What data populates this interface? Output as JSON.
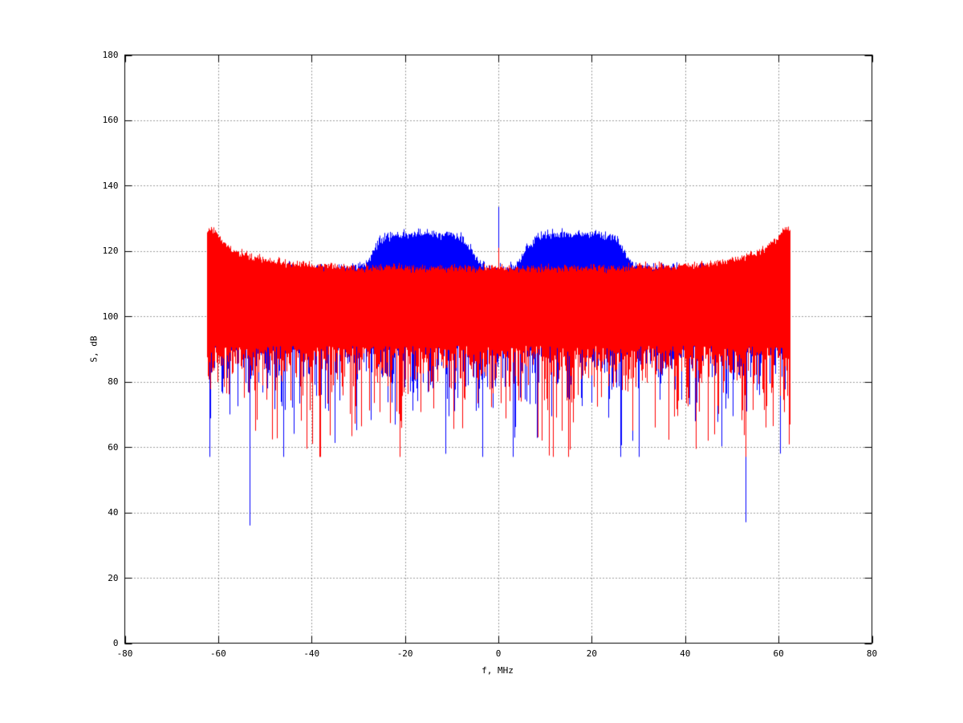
{
  "figure": {
    "background_color": "#ffffff",
    "axes_color": "#000000",
    "grid_color": "#3c3c3c",
    "grid_style": "dotted"
  },
  "chart_data": {
    "type": "line",
    "title": "",
    "xlabel": "f, MHz",
    "ylabel": "S, dB",
    "xlim": [
      -80,
      80
    ],
    "ylim": [
      0,
      180
    ],
    "xticks": [
      -80,
      -60,
      -40,
      -20,
      0,
      20,
      40,
      60,
      80
    ],
    "yticks": [
      0,
      20,
      40,
      60,
      80,
      100,
      120,
      140,
      160,
      180
    ],
    "grid": "on",
    "legend": "none",
    "band_mhz": [
      -62.4,
      62.4
    ],
    "series": [
      {
        "name": "blue-trace",
        "color": "#0000ff",
        "draw_order": 1,
        "top_sigma_db": 1.5,
        "bottom_base_db": 93,
        "bottom_dip_mean_db": 7,
        "deep_dip_prob": 0.04,
        "center_spike": {
          "f": 0,
          "peak_db": 133.5
        },
        "top_envelope": [
          [
            -62.4,
            119.0
          ],
          [
            -61.5,
            117.0
          ],
          [
            -60,
            116.0
          ],
          [
            -57,
            115.3
          ],
          [
            -50,
            114.8
          ],
          [
            -40,
            114.8
          ],
          [
            -31,
            114.9
          ],
          [
            -29,
            115.6
          ],
          [
            -28,
            117.0
          ],
          [
            -27,
            119.5
          ],
          [
            -26,
            122.0
          ],
          [
            -25,
            123.8
          ],
          [
            -24,
            124.6
          ],
          [
            -22,
            125.0
          ],
          [
            -18,
            125.3
          ],
          [
            -14,
            125.4
          ],
          [
            -11,
            125.2
          ],
          [
            -9,
            124.6
          ],
          [
            -8,
            124.0
          ],
          [
            -7,
            122.8
          ],
          [
            -6,
            120.8
          ],
          [
            -5,
            118.2
          ],
          [
            -4.2,
            116.4
          ],
          [
            -3.5,
            115.4
          ],
          [
            -2.5,
            114.9
          ],
          [
            -1,
            114.7
          ],
          [
            1,
            114.7
          ],
          [
            2.5,
            114.9
          ],
          [
            3.5,
            115.4
          ],
          [
            4.2,
            116.4
          ],
          [
            5,
            118.2
          ],
          [
            6,
            120.8
          ],
          [
            7,
            122.8
          ],
          [
            8,
            124.0
          ],
          [
            9,
            124.6
          ],
          [
            11,
            125.2
          ],
          [
            14,
            125.4
          ],
          [
            18,
            125.3
          ],
          [
            22,
            125.0
          ],
          [
            24,
            124.6
          ],
          [
            25,
            123.8
          ],
          [
            26,
            122.0
          ],
          [
            27,
            119.5
          ],
          [
            28,
            117.0
          ],
          [
            29,
            115.6
          ],
          [
            31,
            114.9
          ],
          [
            40,
            114.8
          ],
          [
            50,
            114.8
          ],
          [
            57,
            115.3
          ],
          [
            60,
            116.0
          ],
          [
            61.5,
            117.0
          ],
          [
            62.4,
            119.0
          ]
        ],
        "notable_dips": [
          [
            -53.2,
            36
          ],
          [
            52.9,
            37
          ],
          [
            60.4,
            58
          ],
          [
            -57.5,
            70
          ],
          [
            23.5,
            69
          ],
          [
            -9.5,
            71
          ],
          [
            -61.8,
            75
          ]
        ]
      },
      {
        "name": "red-trace",
        "color": "#ff0000",
        "draw_order": 2,
        "top_sigma_db": 1.2,
        "bottom_base_db": 91,
        "bottom_dip_mean_db": 6.5,
        "deep_dip_prob": 0.03,
        "center_spike": {
          "f": 0,
          "peak_db": 121
        },
        "top_envelope": [
          [
            -62.4,
            126.0
          ],
          [
            -62,
            126.8
          ],
          [
            -61,
            126.5
          ],
          [
            -60,
            124.5
          ],
          [
            -59,
            123.0
          ],
          [
            -58,
            121.8
          ],
          [
            -57,
            120.8
          ],
          [
            -56,
            120.0
          ],
          [
            -54,
            118.8
          ],
          [
            -52,
            118.0
          ],
          [
            -50,
            117.4
          ],
          [
            -47,
            116.6
          ],
          [
            -44,
            116.1
          ],
          [
            -40,
            115.6
          ],
          [
            -35,
            115.2
          ],
          [
            -30,
            115.0
          ],
          [
            -20,
            114.8
          ],
          [
            -10,
            114.8
          ],
          [
            0,
            114.8
          ],
          [
            10,
            114.8
          ],
          [
            20,
            114.8
          ],
          [
            30,
            115.0
          ],
          [
            35,
            115.2
          ],
          [
            40,
            115.6
          ],
          [
            44,
            116.1
          ],
          [
            47,
            116.6
          ],
          [
            50,
            117.4
          ],
          [
            52,
            118.0
          ],
          [
            54,
            118.8
          ],
          [
            56,
            120.0
          ],
          [
            57,
            120.8
          ],
          [
            58,
            121.8
          ],
          [
            59,
            123.0
          ],
          [
            60,
            124.5
          ],
          [
            61,
            126.5
          ],
          [
            62,
            126.8
          ],
          [
            62.4,
            126.0
          ]
        ],
        "notable_dips": [
          [
            -41.0,
            59.5
          ],
          [
            -39.8,
            61
          ],
          [
            57.3,
            66
          ],
          [
            -52.0,
            65
          ],
          [
            8.5,
            63
          ],
          [
            33.5,
            66
          ],
          [
            -21.0,
            68
          ]
        ]
      }
    ]
  }
}
